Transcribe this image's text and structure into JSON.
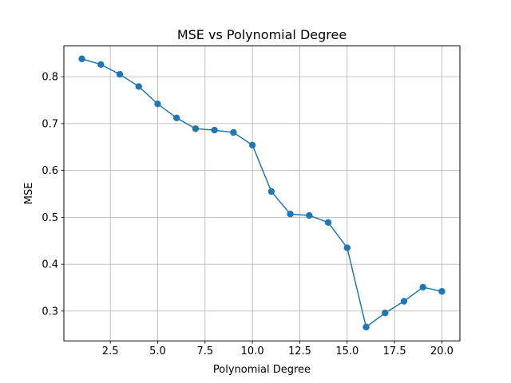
{
  "chart_data": {
    "type": "line",
    "title": "MSE vs Polynomial Degree",
    "xlabel": "Polynomial Degree",
    "ylabel": "MSE",
    "xlim": [
      0.05,
      20.95
    ],
    "ylim": [
      0.2365,
      0.8655
    ],
    "xticks": [
      2.5,
      5.0,
      7.5,
      10.0,
      12.5,
      15.0,
      17.5,
      20.0
    ],
    "xtick_labels": [
      "2.5",
      "5.0",
      "7.5",
      "10.0",
      "12.5",
      "15.0",
      "17.5",
      "20.0"
    ],
    "yticks": [
      0.3,
      0.4,
      0.5,
      0.6,
      0.7,
      0.8
    ],
    "ytick_labels": [
      "0.3",
      "0.4",
      "0.5",
      "0.6",
      "0.7",
      "0.8"
    ],
    "grid": true,
    "marker": "circle",
    "color": "#1f77b4",
    "x": [
      1,
      2,
      3,
      4,
      5,
      6,
      7,
      8,
      9,
      10,
      11,
      12,
      13,
      14,
      15,
      16,
      17,
      18,
      19,
      20
    ],
    "y": [
      0.838,
      0.826,
      0.805,
      0.779,
      0.742,
      0.712,
      0.689,
      0.686,
      0.681,
      0.654,
      0.555,
      0.507,
      0.504,
      0.489,
      0.435,
      0.266,
      0.296,
      0.321,
      0.351,
      0.342
    ]
  }
}
